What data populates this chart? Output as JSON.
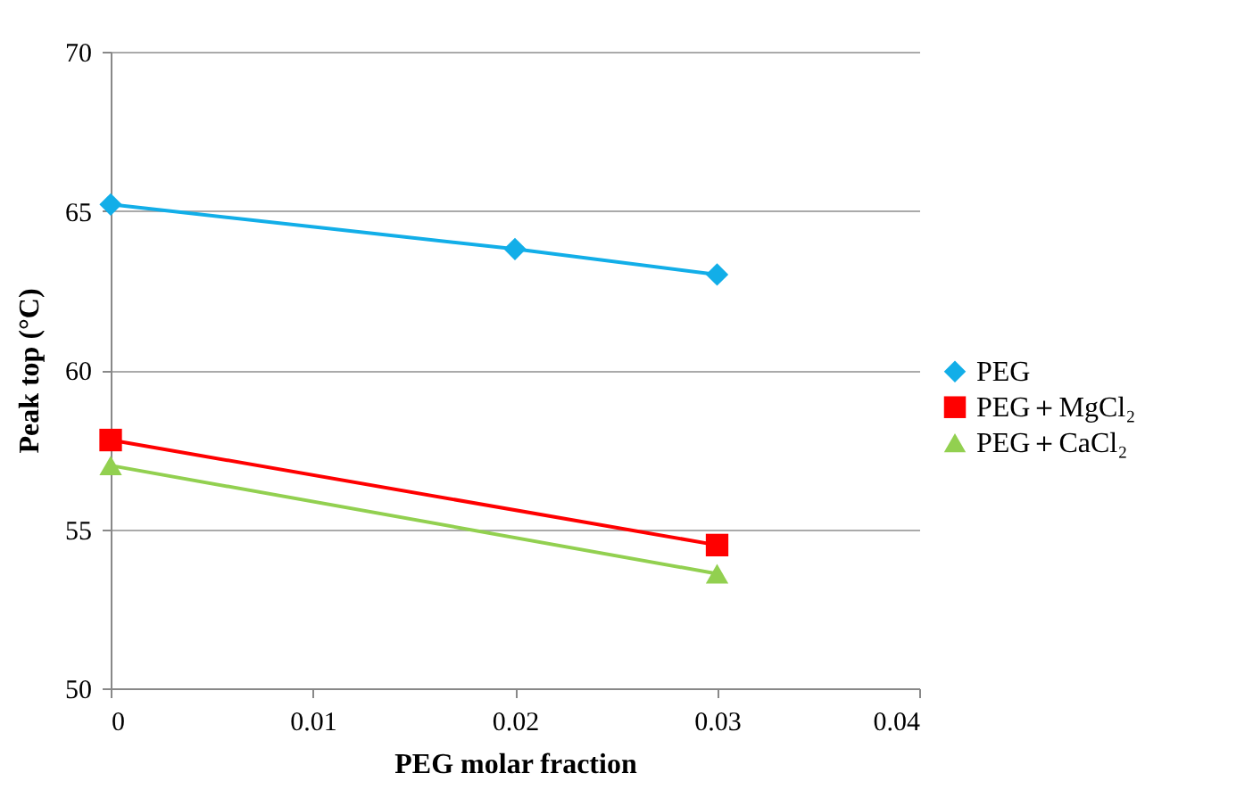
{
  "chart_data": {
    "type": "line",
    "xlabel": "PEG molar fraction",
    "ylabel": "Peak top (°C)",
    "xlim": [
      0,
      0.04
    ],
    "xticks": [
      0,
      0.01,
      0.02,
      0.03,
      0.04
    ],
    "ylim": [
      50,
      70
    ],
    "yticks": [
      50,
      55,
      60,
      65,
      70
    ],
    "grid": "y",
    "legend": "right",
    "series": [
      {
        "name": "PEG",
        "color": "#12aee8",
        "marker": "diamond",
        "x": [
          0,
          0.02,
          0.03
        ],
        "values": [
          65.2,
          63.8,
          63.0
        ]
      },
      {
        "name": "PEG＋MgCl₂",
        "color": "#ff0000",
        "marker": "square",
        "x": [
          0,
          0.03
        ],
        "values": [
          57.8,
          54.5
        ]
      },
      {
        "name": "PEG＋CaCl₂",
        "color": "#92d050",
        "marker": "triangle",
        "x": [
          0,
          0.03
        ],
        "values": [
          57.0,
          53.6
        ]
      }
    ]
  }
}
